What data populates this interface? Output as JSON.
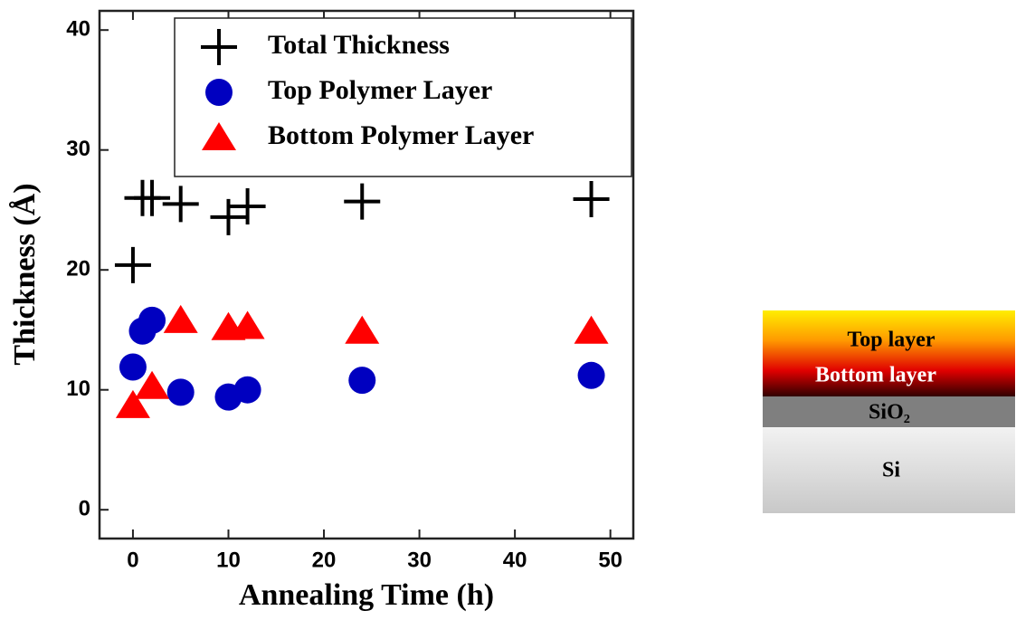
{
  "chart_data": {
    "type": "scatter",
    "x_label": "Annealing Time (h)",
    "y_label": "Thickness (Å)",
    "xlim": [
      -3.5,
      52.4
    ],
    "ylim": [
      -2.4,
      41.6
    ],
    "xticks": [
      0,
      10,
      20,
      30,
      40,
      50
    ],
    "yticks": [
      0,
      10,
      20,
      30,
      40
    ],
    "legend": "top-right",
    "series": [
      {
        "name": "Total Thickness",
        "color": "#000000",
        "marker": "plus",
        "x": [
          0,
          1,
          2,
          5,
          10,
          12,
          24,
          48
        ],
        "values": [
          20.4,
          26,
          26,
          25.5,
          24.4,
          25.3,
          25.7,
          25.9
        ]
      },
      {
        "name": "Top Polymer Layer",
        "color": "#0000c0",
        "marker": "circle",
        "x": [
          0,
          1,
          2,
          5,
          10,
          12,
          24,
          48
        ],
        "values": [
          11.9,
          14.9,
          15.8,
          9.8,
          9.4,
          10,
          10.8,
          11.2
        ]
      },
      {
        "name": "Bottom Polymer Layer",
        "color": "#ff0000",
        "marker": "triangle",
        "x": [
          0,
          2,
          5,
          10,
          12,
          24,
          48
        ],
        "values": [
          8.7,
          10.3,
          15.8,
          15.2,
          15.3,
          14.9,
          14.9
        ]
      }
    ]
  },
  "diagram": {
    "layers": [
      "Top layer",
      "Bottom layer",
      "SiO₂",
      "Si"
    ]
  }
}
